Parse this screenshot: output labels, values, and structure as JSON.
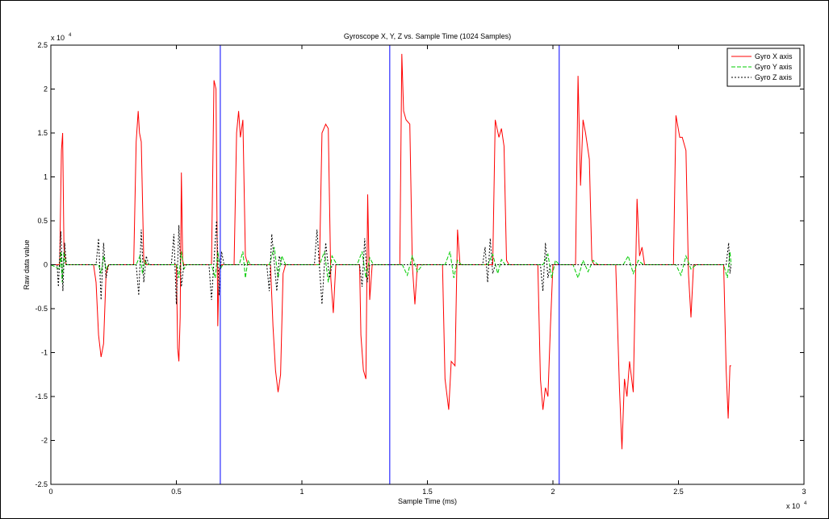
{
  "chart_data": {
    "type": "line",
    "title": "Gyroscope X, Y, Z vs. Sample Time (1024 Samples)",
    "xlabel": "Sample Time (ms)",
    "ylabel": "Raw data value",
    "xlim": [
      0,
      30000
    ],
    "ylim": [
      -25000,
      25000
    ],
    "x_multiplier_label": "x 10",
    "x_multiplier_exp": "4",
    "y_multiplier_label": "x 10",
    "y_multiplier_exp": "4",
    "x_ticks": [
      0,
      5000,
      10000,
      15000,
      20000,
      25000,
      30000
    ],
    "x_tick_labels": [
      "0",
      "0.5",
      "1",
      "1.5",
      "2",
      "2.5",
      "3"
    ],
    "y_ticks": [
      -25000,
      -20000,
      -15000,
      -10000,
      -5000,
      0,
      5000,
      10000,
      15000,
      20000,
      25000
    ],
    "y_tick_labels": [
      "-2.5",
      "-2",
      "-1.5",
      "-1",
      "-0.5",
      "0",
      "0.5",
      "1",
      "1.5",
      "2",
      "2.5"
    ],
    "legend_position": "top-right",
    "grid": false,
    "vertical_markers": [
      6750,
      13500,
      20250
    ],
    "marker_color": "#0000ff",
    "series": [
      {
        "name": "Gyro X axis",
        "color": "#ff0000",
        "style": "solid",
        "points": [
          [
            0,
            0
          ],
          [
            350,
            0
          ],
          [
            420,
            13000
          ],
          [
            470,
            15000
          ],
          [
            520,
            2000
          ],
          [
            600,
            0
          ],
          [
            1700,
            0
          ],
          [
            1800,
            -2000
          ],
          [
            1900,
            -8000
          ],
          [
            2000,
            -10500
          ],
          [
            2100,
            -9000
          ],
          [
            2200,
            -1000
          ],
          [
            2300,
            0
          ],
          [
            3300,
            0
          ],
          [
            3400,
            14000
          ],
          [
            3480,
            17500
          ],
          [
            3530,
            15000
          ],
          [
            3600,
            14000
          ],
          [
            3700,
            500
          ],
          [
            3800,
            0
          ],
          [
            5000,
            0
          ],
          [
            5050,
            -9500
          ],
          [
            5100,
            -11000
          ],
          [
            5150,
            -6000
          ],
          [
            5200,
            10500
          ],
          [
            5250,
            500
          ],
          [
            5300,
            0
          ],
          [
            6400,
            0
          ],
          [
            6500,
            21000
          ],
          [
            6580,
            20000
          ],
          [
            6650,
            -7000
          ],
          [
            6700,
            -500
          ],
          [
            6800,
            0
          ],
          [
            7300,
            0
          ],
          [
            7400,
            15000
          ],
          [
            7480,
            17500
          ],
          [
            7550,
            14500
          ],
          [
            7650,
            16500
          ],
          [
            7750,
            1000
          ],
          [
            7850,
            0
          ],
          [
            8750,
            0
          ],
          [
            8850,
            -7000
          ],
          [
            8950,
            -12000
          ],
          [
            9050,
            -14500
          ],
          [
            9150,
            -12500
          ],
          [
            9250,
            -1000
          ],
          [
            9350,
            0
          ],
          [
            10700,
            0
          ],
          [
            10800,
            15000
          ],
          [
            10950,
            16000
          ],
          [
            11050,
            15500
          ],
          [
            11150,
            -1500
          ],
          [
            11250,
            -5500
          ],
          [
            11350,
            0
          ],
          [
            12300,
            0
          ],
          [
            12350,
            -8000
          ],
          [
            12450,
            -12000
          ],
          [
            12550,
            -13000
          ],
          [
            12620,
            8000
          ],
          [
            12700,
            -4000
          ],
          [
            12800,
            0
          ],
          [
            13900,
            0
          ],
          [
            13980,
            24000
          ],
          [
            14050,
            17500
          ],
          [
            14150,
            16500
          ],
          [
            14300,
            16000
          ],
          [
            14400,
            0
          ],
          [
            14500,
            -4500
          ],
          [
            14600,
            0
          ],
          [
            15600,
            0
          ],
          [
            15700,
            -13000
          ],
          [
            15850,
            -16500
          ],
          [
            15950,
            -11000
          ],
          [
            16100,
            -11500
          ],
          [
            16200,
            4000
          ],
          [
            16300,
            0
          ],
          [
            17600,
            0
          ],
          [
            17700,
            16500
          ],
          [
            17850,
            14500
          ],
          [
            17950,
            15500
          ],
          [
            18050,
            13500
          ],
          [
            18150,
            500
          ],
          [
            18250,
            0
          ],
          [
            19400,
            0
          ],
          [
            19500,
            -13000
          ],
          [
            19600,
            -16500
          ],
          [
            19700,
            -14000
          ],
          [
            19800,
            -15000
          ],
          [
            19900,
            -7000
          ],
          [
            20000,
            0
          ],
          [
            20900,
            0
          ],
          [
            21000,
            21500
          ],
          [
            21100,
            9000
          ],
          [
            21200,
            16500
          ],
          [
            21300,
            15000
          ],
          [
            21450,
            12000
          ],
          [
            21550,
            500
          ],
          [
            21650,
            0
          ],
          [
            22500,
            0
          ],
          [
            22650,
            -14000
          ],
          [
            22750,
            -21000
          ],
          [
            22850,
            -13000
          ],
          [
            22950,
            -15000
          ],
          [
            23050,
            -11000
          ],
          [
            23200,
            -14500
          ],
          [
            23350,
            7500
          ],
          [
            23450,
            1000
          ],
          [
            23550,
            2000
          ],
          [
            23650,
            0
          ],
          [
            24800,
            0
          ],
          [
            24900,
            17000
          ],
          [
            25050,
            14500
          ],
          [
            25150,
            14500
          ],
          [
            25300,
            13000
          ],
          [
            25400,
            -1000
          ],
          [
            25500,
            -6000
          ],
          [
            25600,
            0
          ],
          [
            26800,
            0
          ],
          [
            26900,
            -12000
          ],
          [
            26980,
            -17500
          ],
          [
            27050,
            -11500
          ],
          [
            27100,
            -11500
          ]
        ]
      },
      {
        "name": "Gyro Y axis",
        "color": "#00cc00",
        "style": "dashed",
        "points": [
          [
            0,
            0
          ],
          [
            350,
            -500
          ],
          [
            400,
            1500
          ],
          [
            450,
            -2000
          ],
          [
            520,
            1500
          ],
          [
            600,
            0
          ],
          [
            1900,
            0
          ],
          [
            2000,
            -1000
          ],
          [
            2100,
            1000
          ],
          [
            2200,
            -500
          ],
          [
            2300,
            0
          ],
          [
            3400,
            0
          ],
          [
            3550,
            1000
          ],
          [
            3650,
            -1000
          ],
          [
            3750,
            500
          ],
          [
            3850,
            0
          ],
          [
            5000,
            0
          ],
          [
            5100,
            -1500
          ],
          [
            5200,
            1500
          ],
          [
            5300,
            -500
          ],
          [
            5400,
            0
          ],
          [
            6400,
            0
          ],
          [
            6550,
            -1500
          ],
          [
            6650,
            1500
          ],
          [
            6750,
            -500
          ],
          [
            6850,
            0
          ],
          [
            7500,
            0
          ],
          [
            7650,
            1500
          ],
          [
            7750,
            -1500
          ],
          [
            7850,
            500
          ],
          [
            7950,
            0
          ],
          [
            8700,
            0
          ],
          [
            8900,
            2000
          ],
          [
            9050,
            -1500
          ],
          [
            9200,
            1000
          ],
          [
            9350,
            0
          ],
          [
            10700,
            0
          ],
          [
            10900,
            1500
          ],
          [
            11050,
            -2000
          ],
          [
            11200,
            1000
          ],
          [
            11400,
            0
          ],
          [
            12200,
            0
          ],
          [
            12400,
            1500
          ],
          [
            12550,
            -1500
          ],
          [
            12700,
            800
          ],
          [
            12850,
            0
          ],
          [
            14000,
            0
          ],
          [
            14200,
            -1200
          ],
          [
            14400,
            1000
          ],
          [
            14600,
            -800
          ],
          [
            14800,
            0
          ],
          [
            15700,
            0
          ],
          [
            15900,
            1500
          ],
          [
            16050,
            -1500
          ],
          [
            16200,
            500
          ],
          [
            16350,
            0
          ],
          [
            17400,
            0
          ],
          [
            17600,
            1200
          ],
          [
            17800,
            -1000
          ],
          [
            17950,
            600
          ],
          [
            18100,
            0
          ],
          [
            19600,
            0
          ],
          [
            19800,
            1200
          ],
          [
            19950,
            -1500
          ],
          [
            20100,
            500
          ],
          [
            20250,
            0
          ],
          [
            20800,
            0
          ],
          [
            21000,
            -1500
          ],
          [
            21200,
            500
          ],
          [
            21400,
            -800
          ],
          [
            21600,
            500
          ],
          [
            21800,
            0
          ],
          [
            22800,
            0
          ],
          [
            23000,
            1000
          ],
          [
            23200,
            -1000
          ],
          [
            23400,
            500
          ],
          [
            23600,
            0
          ],
          [
            24900,
            0
          ],
          [
            25100,
            -1200
          ],
          [
            25300,
            1000
          ],
          [
            25500,
            -500
          ],
          [
            25700,
            0
          ],
          [
            26800,
            0
          ],
          [
            26950,
            -1500
          ],
          [
            27050,
            1500
          ],
          [
            27100,
            0
          ]
        ]
      },
      {
        "name": "Gyro Z axis",
        "color": "#000000",
        "style": "dotted",
        "points": [
          [
            0,
            0
          ],
          [
            250,
            0
          ],
          [
            300,
            -2500
          ],
          [
            400,
            3800
          ],
          [
            480,
            -3000
          ],
          [
            550,
            2500
          ],
          [
            620,
            0
          ],
          [
            1800,
            0
          ],
          [
            1900,
            3000
          ],
          [
            2000,
            -4000
          ],
          [
            2100,
            2500
          ],
          [
            2200,
            -1500
          ],
          [
            2300,
            0
          ],
          [
            3400,
            0
          ],
          [
            3500,
            -3500
          ],
          [
            3600,
            4000
          ],
          [
            3700,
            -2000
          ],
          [
            3800,
            1000
          ],
          [
            3900,
            0
          ],
          [
            4800,
            0
          ],
          [
            4900,
            3500
          ],
          [
            5000,
            -4500
          ],
          [
            5100,
            4500
          ],
          [
            5200,
            -2500
          ],
          [
            5300,
            0
          ],
          [
            6300,
            0
          ],
          [
            6400,
            -4000
          ],
          [
            6600,
            5000
          ],
          [
            6700,
            -3500
          ],
          [
            6800,
            1500
          ],
          [
            6900,
            0
          ],
          [
            8600,
            0
          ],
          [
            8700,
            -3000
          ],
          [
            8800,
            3500
          ],
          [
            9000,
            -3000
          ],
          [
            9100,
            1000
          ],
          [
            9200,
            0
          ],
          [
            10500,
            0
          ],
          [
            10600,
            4000
          ],
          [
            10800,
            -4500
          ],
          [
            10950,
            2500
          ],
          [
            11100,
            -1500
          ],
          [
            11200,
            0
          ],
          [
            12300,
            0
          ],
          [
            12400,
            -2500
          ],
          [
            12500,
            3000
          ],
          [
            12600,
            -2000
          ],
          [
            12700,
            0
          ],
          [
            17200,
            0
          ],
          [
            17300,
            2000
          ],
          [
            17400,
            -2000
          ],
          [
            17500,
            3000
          ],
          [
            17600,
            -1000
          ],
          [
            17700,
            0
          ],
          [
            19500,
            0
          ],
          [
            19600,
            -3000
          ],
          [
            19700,
            2500
          ],
          [
            19800,
            -1500
          ],
          [
            19900,
            0
          ],
          [
            26900,
            0
          ],
          [
            27000,
            2500
          ],
          [
            27050,
            -1000
          ],
          [
            27100,
            0
          ]
        ]
      }
    ]
  }
}
